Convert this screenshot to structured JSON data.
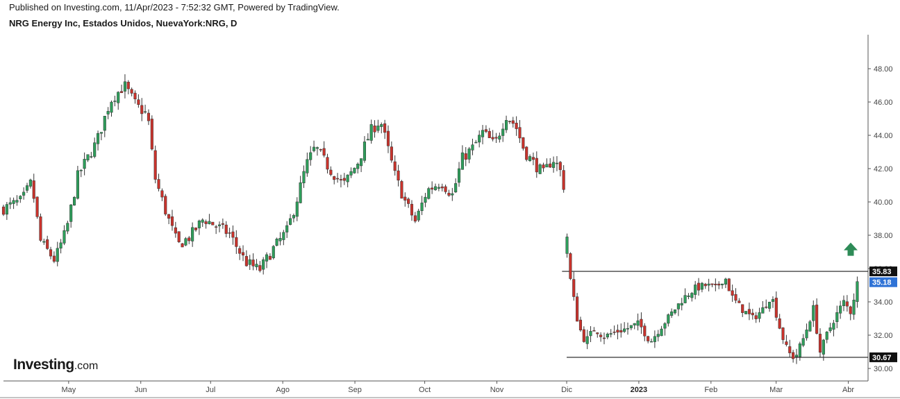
{
  "header": {
    "published": "Published on Investing.com, 11/Apr/2023 - 7:52:32 GMT, Powered by TradingView.",
    "title": "NRG Energy Inc, Estados Unidos, NuevaYork:NRG, D"
  },
  "logo": {
    "brand": "Investing",
    "domain": ".com"
  },
  "colors": {
    "up": "#2e9e5b",
    "down": "#c9332c",
    "line": "#1a1a1a",
    "axis": "#555555",
    "badge_blue": "#2f73d6",
    "arrow": "#2e8b57"
  },
  "chart_data": {
    "type": "candlestick",
    "ylim": [
      29.5,
      49.5
    ],
    "yticks": [
      "30.00",
      "32.00",
      "34.00",
      "36.00",
      "38.00",
      "40.00",
      "42.00",
      "44.00",
      "46.00",
      "48.00"
    ],
    "xticks": [
      {
        "label": "May",
        "day": 28,
        "bold": false
      },
      {
        "label": "Jun",
        "day": 59,
        "bold": false
      },
      {
        "label": "Jul",
        "day": 89,
        "bold": false
      },
      {
        "label": "Ago",
        "day": 120,
        "bold": false
      },
      {
        "label": "Sep",
        "day": 151,
        "bold": false
      },
      {
        "label": "Oct",
        "day": 181,
        "bold": false
      },
      {
        "label": "Nov",
        "day": 212,
        "bold": false
      },
      {
        "label": "Dic",
        "day": 242,
        "bold": false
      },
      {
        "label": "2023",
        "day": 273,
        "bold": true
      },
      {
        "label": "Feb",
        "day": 304,
        "bold": false
      },
      {
        "label": "Mar",
        "day": 332,
        "bold": false
      },
      {
        "label": "Abr",
        "day": 363,
        "bold": false
      }
    ],
    "resistance": {
      "value": 35.83,
      "label": "35.83"
    },
    "support": {
      "value": 30.67,
      "label": "30.67"
    },
    "last": {
      "value": 35.18,
      "label": "35.18"
    },
    "signal": "up-arrow",
    "keypoints": [
      [
        0,
        39.6
      ],
      [
        8,
        40.1
      ],
      [
        12,
        41.2
      ],
      [
        16,
        37.6
      ],
      [
        22,
        36.5
      ],
      [
        27,
        38.3
      ],
      [
        32,
        41.6
      ],
      [
        40,
        43.6
      ],
      [
        46,
        46.1
      ],
      [
        52,
        47.0
      ],
      [
        57,
        45.8
      ],
      [
        62,
        45.2
      ],
      [
        65,
        41.5
      ],
      [
        70,
        39.3
      ],
      [
        75,
        37.4
      ],
      [
        80,
        37.9
      ],
      [
        86,
        39.0
      ],
      [
        92,
        38.5
      ],
      [
        97,
        38.1
      ],
      [
        104,
        36.4
      ],
      [
        110,
        35.9
      ],
      [
        116,
        37.2
      ],
      [
        122,
        38.3
      ],
      [
        126,
        40.1
      ],
      [
        130,
        42.2
      ],
      [
        134,
        43.3
      ],
      [
        140,
        42.0
      ],
      [
        146,
        41.0
      ],
      [
        152,
        42.3
      ],
      [
        158,
        44.3
      ],
      [
        162,
        44.9
      ],
      [
        168,
        41.7
      ],
      [
        172,
        40.2
      ],
      [
        177,
        38.8
      ],
      [
        182,
        40.7
      ],
      [
        188,
        41.2
      ],
      [
        193,
        40.4
      ],
      [
        197,
        42.6
      ],
      [
        202,
        43.3
      ],
      [
        206,
        44.2
      ],
      [
        211,
        43.4
      ],
      [
        216,
        45.2
      ],
      [
        220,
        44.6
      ],
      [
        224,
        43.0
      ],
      [
        228,
        42.3
      ],
      [
        232,
        41.7
      ],
      [
        236,
        42.6
      ],
      [
        239,
        42.0
      ],
      [
        241,
        40.8
      ],
      [
        243,
        35.8
      ],
      [
        247,
        32.6
      ],
      [
        250,
        31.6
      ],
      [
        254,
        32.4
      ],
      [
        258,
        31.9
      ],
      [
        263,
        32.2
      ],
      [
        268,
        32.4
      ],
      [
        273,
        32.7
      ],
      [
        278,
        31.6
      ],
      [
        282,
        32.4
      ],
      [
        287,
        33.3
      ],
      [
        292,
        34.2
      ],
      [
        297,
        34.8
      ],
      [
        302,
        35.0
      ],
      [
        306,
        34.8
      ],
      [
        310,
        35.5
      ],
      [
        313,
        34.3
      ],
      [
        317,
        33.6
      ],
      [
        322,
        33.0
      ],
      [
        326,
        33.5
      ],
      [
        330,
        34.4
      ],
      [
        334,
        32.2
      ],
      [
        337,
        31.0
      ],
      [
        340,
        30.6
      ],
      [
        344,
        31.9
      ],
      [
        348,
        33.6
      ],
      [
        351,
        30.9
      ],
      [
        353,
        31.8
      ],
      [
        357,
        33.0
      ],
      [
        361,
        34.0
      ],
      [
        364,
        33.4
      ],
      [
        367,
        35.2
      ]
    ]
  }
}
